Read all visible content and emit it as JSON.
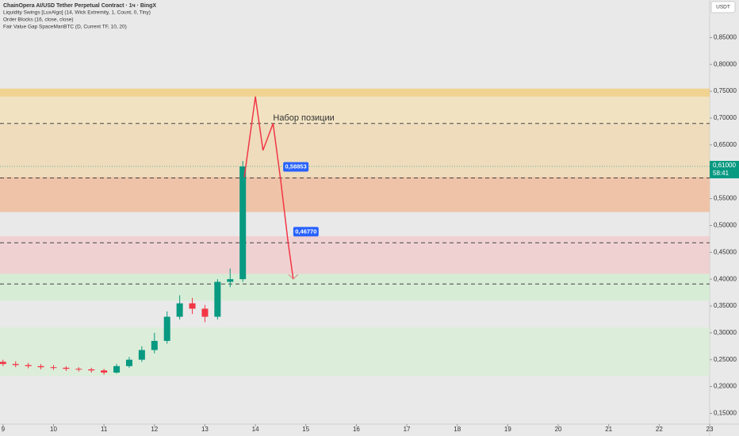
{
  "chart_data": {
    "type": "candlestick",
    "title": "ChainOpera AI/USD Tether Perpetual Contract · 1ч · BingX",
    "indicators": [
      "Liquidity Swings [LuxAlgo] (14, Wick Extremity, 1, Count, 0, Tiny)",
      "Order Blocks (16, close, close)",
      "Fair Value Gap SpaceManBTC (D, Current TF, 10, 20)"
    ],
    "currency": "USDT",
    "xlim": [
      8.94,
      23.0
    ],
    "xticks": [
      9,
      10,
      11,
      12,
      13,
      14,
      15,
      16,
      17,
      18,
      19,
      20,
      21,
      22,
      23
    ],
    "ylim": [
      0.13,
      0.92
    ],
    "yticks": [
      {
        "value": 0.15,
        "label": "0,15000"
      },
      {
        "value": 0.2,
        "label": "0,20000"
      },
      {
        "value": 0.25,
        "label": "0,25000"
      },
      {
        "value": 0.3,
        "label": "0,30000"
      },
      {
        "value": 0.35,
        "label": "0,35000"
      },
      {
        "value": 0.4,
        "label": "0,40000"
      },
      {
        "value": 0.45,
        "label": "0,45000"
      },
      {
        "value": 0.5,
        "label": "0,50000"
      },
      {
        "value": 0.55,
        "label": "0,55000"
      },
      {
        "value": 0.6,
        "label": "0,60000"
      },
      {
        "value": 0.65,
        "label": "0,65000"
      },
      {
        "value": 0.7,
        "label": "0,70000"
      },
      {
        "value": 0.75,
        "label": "0,75000"
      },
      {
        "value": 0.8,
        "label": "0,80000"
      },
      {
        "value": 0.85,
        "label": "0,85000"
      }
    ],
    "up_color": "#089981",
    "down_color": "#f23645",
    "x": [
      9.0,
      9.25,
      9.5,
      9.75,
      10.0,
      10.25,
      10.5,
      10.75,
      11.0,
      11.25,
      11.5,
      11.75,
      12.0,
      12.25,
      12.5,
      12.75,
      13.0,
      13.25,
      13.5,
      13.75
    ],
    "open": [
      0.246,
      0.242,
      0.24,
      0.238,
      0.236,
      0.235,
      0.233,
      0.232,
      0.23,
      0.226,
      0.238,
      0.25,
      0.268,
      0.285,
      0.33,
      0.355,
      0.345,
      0.33,
      0.395,
      0.4
    ],
    "high": [
      0.25,
      0.247,
      0.244,
      0.242,
      0.24,
      0.238,
      0.236,
      0.235,
      0.233,
      0.242,
      0.255,
      0.275,
      0.3,
      0.34,
      0.37,
      0.365,
      0.352,
      0.4,
      0.42,
      0.62
    ],
    "low": [
      0.238,
      0.236,
      0.234,
      0.232,
      0.231,
      0.229,
      0.228,
      0.226,
      0.222,
      0.224,
      0.235,
      0.246,
      0.262,
      0.28,
      0.325,
      0.335,
      0.32,
      0.325,
      0.385,
      0.395
    ],
    "close": [
      0.242,
      0.24,
      0.238,
      0.236,
      0.235,
      0.233,
      0.232,
      0.23,
      0.226,
      0.238,
      0.25,
      0.268,
      0.285,
      0.33,
      0.355,
      0.345,
      0.33,
      0.395,
      0.4,
      0.61
    ],
    "zones": [
      {
        "low": 0.74,
        "high": 0.755,
        "color": "#f2c96b"
      },
      {
        "low": 0.69,
        "high": 0.74,
        "color": "#f3dfb0"
      },
      {
        "low": 0.525,
        "high": 0.69,
        "color": "#f0d6a8"
      },
      {
        "low": 0.525,
        "high": 0.59,
        "color": "#f0b8a0"
      },
      {
        "low": 0.41,
        "high": 0.48,
        "color": "#f2c6c6"
      },
      {
        "low": 0.36,
        "high": 0.41,
        "color": "#cfeccc"
      },
      {
        "low": 0.22,
        "high": 0.31,
        "color": "#d6eed3"
      }
    ],
    "levels": [
      0.69,
      0.58853,
      0.4677,
      0.391
    ],
    "price_tags": {
      "values": [
        0.58853,
        0.4677
      ],
      "value_labels": [
        "0,58853",
        "0,46770"
      ],
      "x": [
        14.55,
        14.75
      ]
    },
    "projection": {
      "color": "#f23645",
      "x": [
        13.78,
        14.0,
        14.15,
        14.35,
        14.5,
        14.65,
        14.75
      ],
      "values": [
        0.59,
        0.74,
        0.64,
        0.69,
        0.585,
        0.467,
        0.4
      ]
    },
    "annotation": {
      "text": "Набор позиции",
      "x": 14.35,
      "y": 0.7
    },
    "last_price": {
      "value": 0.61,
      "label": "0,61000",
      "countdown": "58:41",
      "color": "#089981"
    }
  }
}
